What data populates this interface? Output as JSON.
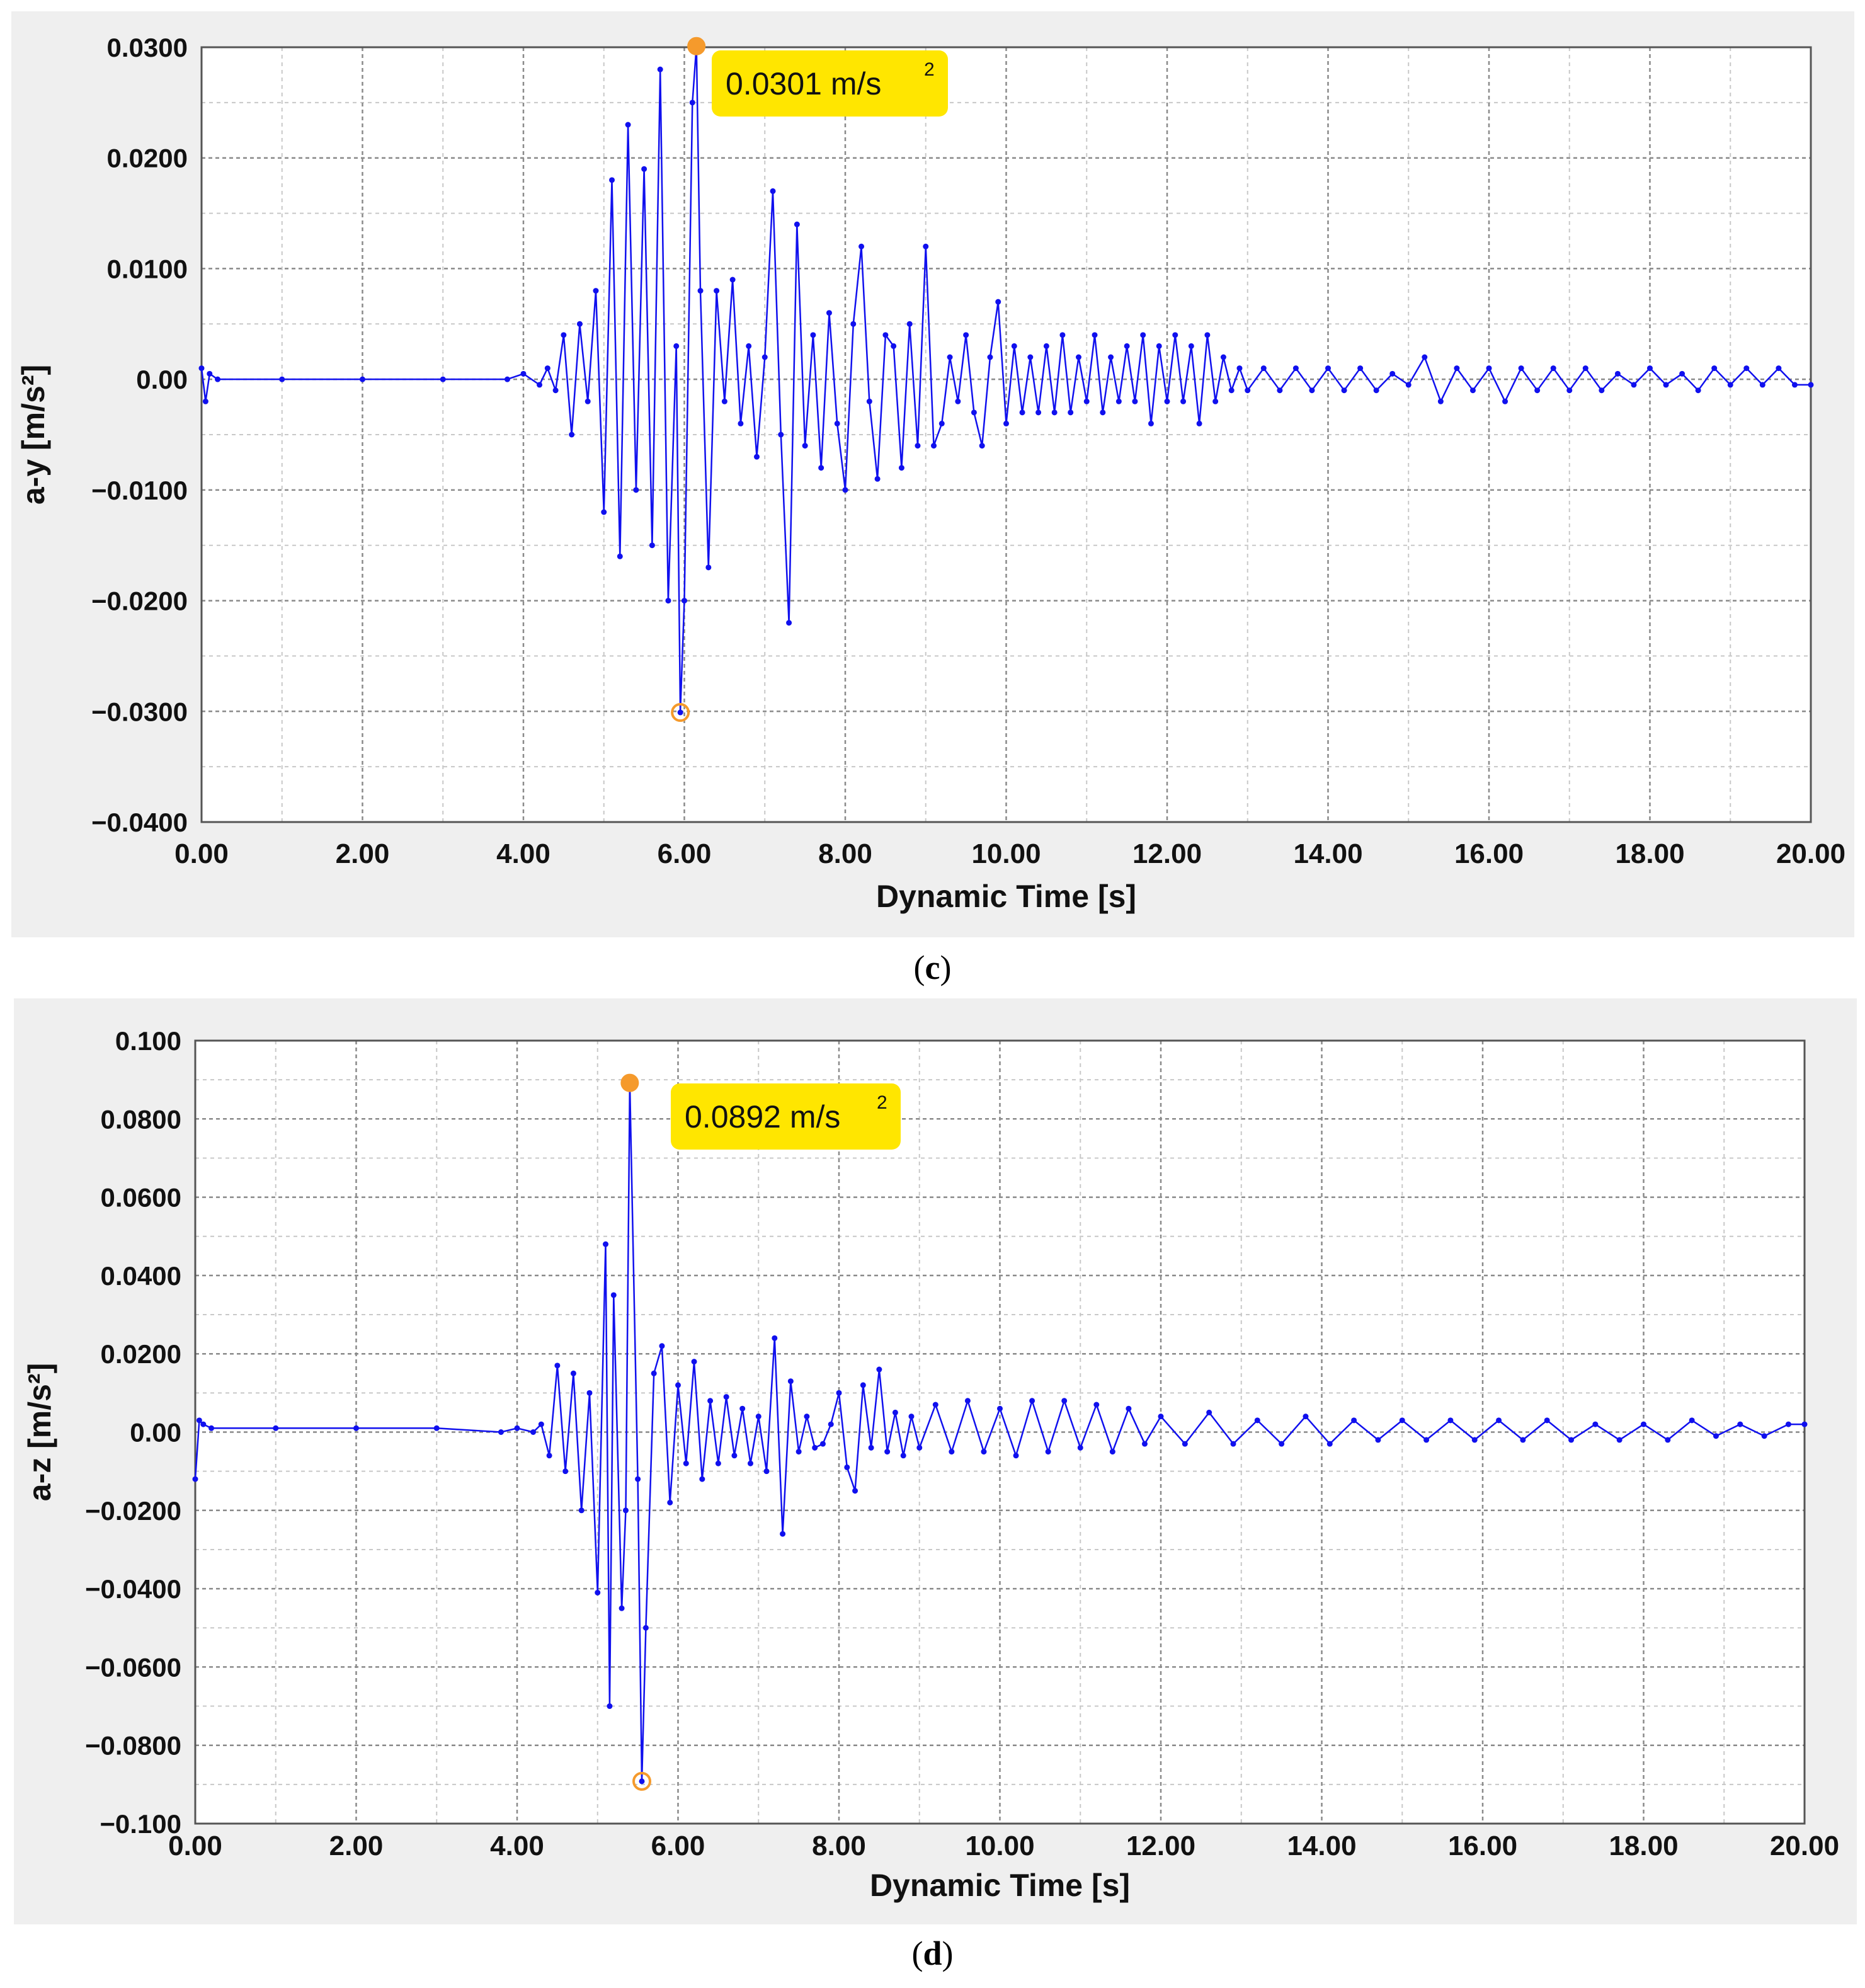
{
  "panels": [
    {
      "label": "c",
      "chart_data": {
        "type": "line",
        "title": "",
        "xlabel": "Dynamic Time [s]",
        "ylabel": "a-y  [m/s²]",
        "xlim": [
          0,
          20
        ],
        "ylim": [
          -0.04,
          0.03
        ],
        "xticks": [
          0,
          2,
          4,
          6,
          8,
          10,
          12,
          14,
          16,
          18,
          20
        ],
        "xtick_labels": [
          "0.00",
          "2.00",
          "4.00",
          "6.00",
          "8.00",
          "10.00",
          "12.00",
          "14.00",
          "16.00",
          "18.00",
          "20.00"
        ],
        "yticks": [
          0.03,
          0.02,
          0.01,
          0,
          -0.01,
          -0.02,
          -0.03,
          -0.04
        ],
        "ytick_labels": [
          "0.0300",
          "0.0200",
          "0.0100",
          "0.00",
          "−0.0100",
          "−0.0200",
          "−0.0300",
          "−0.0400"
        ],
        "grid": true,
        "series": [
          {
            "color": "#1010ee",
            "x": [
              0,
              0.05,
              0.1,
              0.2,
              1,
              2,
              3,
              3.8,
              4.0,
              4.2,
              4.3,
              4.4,
              4.5,
              4.6,
              4.7,
              4.8,
              4.9,
              5.0,
              5.1,
              5.2,
              5.3,
              5.4,
              5.5,
              5.6,
              5.7,
              5.8,
              5.9,
              5.95,
              6.0,
              6.1,
              6.15,
              6.2,
              6.3,
              6.4,
              6.5,
              6.6,
              6.7,
              6.8,
              6.9,
              7.0,
              7.1,
              7.2,
              7.3,
              7.4,
              7.5,
              7.6,
              7.7,
              7.8,
              7.9,
              8.0,
              8.1,
              8.2,
              8.3,
              8.4,
              8.5,
              8.6,
              8.7,
              8.8,
              8.9,
              9.0,
              9.1,
              9.2,
              9.3,
              9.4,
              9.5,
              9.6,
              9.7,
              9.8,
              9.9,
              10.0,
              10.1,
              10.2,
              10.3,
              10.4,
              10.5,
              10.6,
              10.7,
              10.8,
              10.9,
              11.0,
              11.1,
              11.2,
              11.3,
              11.4,
              11.5,
              11.6,
              11.7,
              11.8,
              11.9,
              12.0,
              12.1,
              12.2,
              12.3,
              12.4,
              12.5,
              12.6,
              12.7,
              12.8,
              12.9,
              13.0,
              13.2,
              13.4,
              13.6,
              13.8,
              14.0,
              14.2,
              14.4,
              14.6,
              14.8,
              15.0,
              15.2,
              15.4,
              15.6,
              15.8,
              16.0,
              16.2,
              16.4,
              16.6,
              16.8,
              17.0,
              17.2,
              17.4,
              17.6,
              17.8,
              18.0,
              18.2,
              18.4,
              18.6,
              18.8,
              19.0,
              19.2,
              19.4,
              19.6,
              19.8,
              20.0
            ],
            "y": [
              0.001,
              -0.002,
              0.0005,
              0,
              0,
              0,
              0,
              0,
              0.0005,
              -0.0005,
              0.001,
              -0.001,
              0.004,
              -0.005,
              0.005,
              -0.002,
              0.008,
              -0.012,
              0.018,
              -0.016,
              0.023,
              -0.01,
              0.019,
              -0.015,
              0.028,
              -0.02,
              0.003,
              -0.0301,
              -0.02,
              0.025,
              0.0301,
              0.008,
              -0.017,
              0.008,
              -0.002,
              0.009,
              -0.004,
              0.003,
              -0.007,
              0.002,
              0.017,
              -0.005,
              -0.022,
              0.014,
              -0.006,
              0.004,
              -0.008,
              0.006,
              -0.004,
              -0.01,
              0.005,
              0.012,
              -0.002,
              -0.009,
              0.004,
              0.003,
              -0.008,
              0.005,
              -0.006,
              0.012,
              -0.006,
              -0.004,
              0.002,
              -0.002,
              0.004,
              -0.003,
              -0.006,
              0.002,
              0.007,
              -0.004,
              0.003,
              -0.003,
              0.002,
              -0.003,
              0.003,
              -0.003,
              0.004,
              -0.003,
              0.002,
              -0.002,
              0.004,
              -0.003,
              0.002,
              -0.002,
              0.003,
              -0.002,
              0.004,
              -0.004,
              0.003,
              -0.002,
              0.004,
              -0.002,
              0.003,
              -0.004,
              0.004,
              -0.002,
              0.002,
              -0.001,
              0.001,
              -0.001,
              0.001,
              -0.001,
              0.001,
              -0.001,
              0.001,
              -0.001,
              0.001,
              -0.001,
              0.0005,
              -0.0005,
              0.002,
              -0.002,
              0.001,
              -0.001,
              0.001,
              -0.002,
              0.001,
              -0.001,
              0.001,
              -0.001,
              0.001,
              -0.001,
              0.0005,
              -0.0005,
              0.001,
              -0.0005,
              0.0005,
              -0.001,
              0.001,
              -0.0005,
              0.001,
              -0.0005,
              0.001,
              -0.0005,
              -0.0005
            ]
          }
        ],
        "annotations": [
          {
            "text": "0.0301 m/s",
            "sup": "2",
            "x": 6.15,
            "y": 0.0301,
            "fill_color": "#ffe600",
            "marker_color": "#f59a2c"
          },
          {
            "text": "",
            "x": 5.95,
            "y": -0.0301,
            "marker_color": "#f59a2c"
          }
        ]
      }
    },
    {
      "label": "d",
      "chart_data": {
        "type": "line",
        "title": "",
        "xlabel": "Dynamic Time [s]",
        "ylabel": "a-z  [m/s²]",
        "xlim": [
          0,
          20
        ],
        "ylim": [
          -0.1,
          0.1
        ],
        "xticks": [
          0,
          2,
          4,
          6,
          8,
          10,
          12,
          14,
          16,
          18,
          20
        ],
        "xtick_labels": [
          "0.00",
          "2.00",
          "4.00",
          "6.00",
          "8.00",
          "10.00",
          "12.00",
          "14.00",
          "16.00",
          "18.00",
          "20.00"
        ],
        "yticks": [
          0.1,
          0.08,
          0.06,
          0.04,
          0.02,
          0,
          -0.02,
          -0.04,
          -0.06,
          -0.08,
          -0.1
        ],
        "ytick_labels": [
          "0.100",
          "0.0800",
          "0.0600",
          "0.0400",
          "0.0200",
          "0.00",
          "−0.0200",
          "−0.0400",
          "−0.0600",
          "−0.0800",
          "−0.100"
        ],
        "grid": true,
        "series": [
          {
            "color": "#1010ee",
            "x": [
              0,
              0.05,
              0.1,
              0.2,
              1,
              2,
              3,
              3.8,
              4.0,
              4.2,
              4.3,
              4.4,
              4.5,
              4.6,
              4.7,
              4.8,
              4.9,
              5.0,
              5.1,
              5.15,
              5.2,
              5.3,
              5.35,
              5.4,
              5.5,
              5.55,
              5.6,
              5.7,
              5.8,
              5.9,
              6.0,
              6.1,
              6.2,
              6.3,
              6.4,
              6.5,
              6.6,
              6.7,
              6.8,
              6.9,
              7.0,
              7.1,
              7.2,
              7.3,
              7.4,
              7.5,
              7.6,
              7.7,
              7.8,
              7.9,
              8.0,
              8.1,
              8.2,
              8.3,
              8.4,
              8.5,
              8.6,
              8.7,
              8.8,
              8.9,
              9.0,
              9.2,
              9.4,
              9.6,
              9.8,
              10.0,
              10.2,
              10.4,
              10.6,
              10.8,
              11.0,
              11.2,
              11.4,
              11.6,
              11.8,
              12.0,
              12.3,
              12.6,
              12.9,
              13.2,
              13.5,
              13.8,
              14.1,
              14.4,
              14.7,
              15.0,
              15.3,
              15.6,
              15.9,
              16.2,
              16.5,
              16.8,
              17.1,
              17.4,
              17.7,
              18.0,
              18.3,
              18.6,
              18.9,
              19.2,
              19.5,
              19.8,
              20.0
            ],
            "y": [
              -0.012,
              0.003,
              0.002,
              0.001,
              0.001,
              0.001,
              0.001,
              0,
              0.001,
              0,
              0.002,
              -0.006,
              0.017,
              -0.01,
              0.015,
              -0.02,
              0.01,
              -0.041,
              0.048,
              -0.07,
              0.035,
              -0.045,
              -0.02,
              0.0892,
              -0.012,
              -0.0892,
              -0.05,
              0.015,
              0.022,
              -0.018,
              0.012,
              -0.008,
              0.018,
              -0.012,
              0.008,
              -0.008,
              0.009,
              -0.006,
              0.006,
              -0.008,
              0.004,
              -0.01,
              0.024,
              -0.026,
              0.013,
              -0.005,
              0.004,
              -0.004,
              -0.003,
              0.002,
              0.01,
              -0.009,
              -0.015,
              0.012,
              -0.004,
              0.016,
              -0.005,
              0.005,
              -0.006,
              0.004,
              -0.004,
              0.007,
              -0.005,
              0.008,
              -0.005,
              0.006,
              -0.006,
              0.008,
              -0.005,
              0.008,
              -0.004,
              0.007,
              -0.005,
              0.006,
              -0.003,
              0.004,
              -0.003,
              0.005,
              -0.003,
              0.003,
              -0.003,
              0.004,
              -0.003,
              0.003,
              -0.002,
              0.003,
              -0.002,
              0.003,
              -0.002,
              0.003,
              -0.002,
              0.003,
              -0.002,
              0.002,
              -0.002,
              0.002,
              -0.002,
              0.003,
              -0.001,
              0.002,
              -0.001,
              0.002,
              0.002
            ]
          }
        ],
        "annotations": [
          {
            "text": "0.0892 m/s",
            "sup": "2",
            "x": 5.4,
            "y": 0.0892,
            "fill_color": "#ffe600",
            "marker_color": "#f59a2c"
          },
          {
            "text": "",
            "x": 5.55,
            "y": -0.0892,
            "marker_color": "#f59a2c"
          }
        ]
      }
    }
  ]
}
